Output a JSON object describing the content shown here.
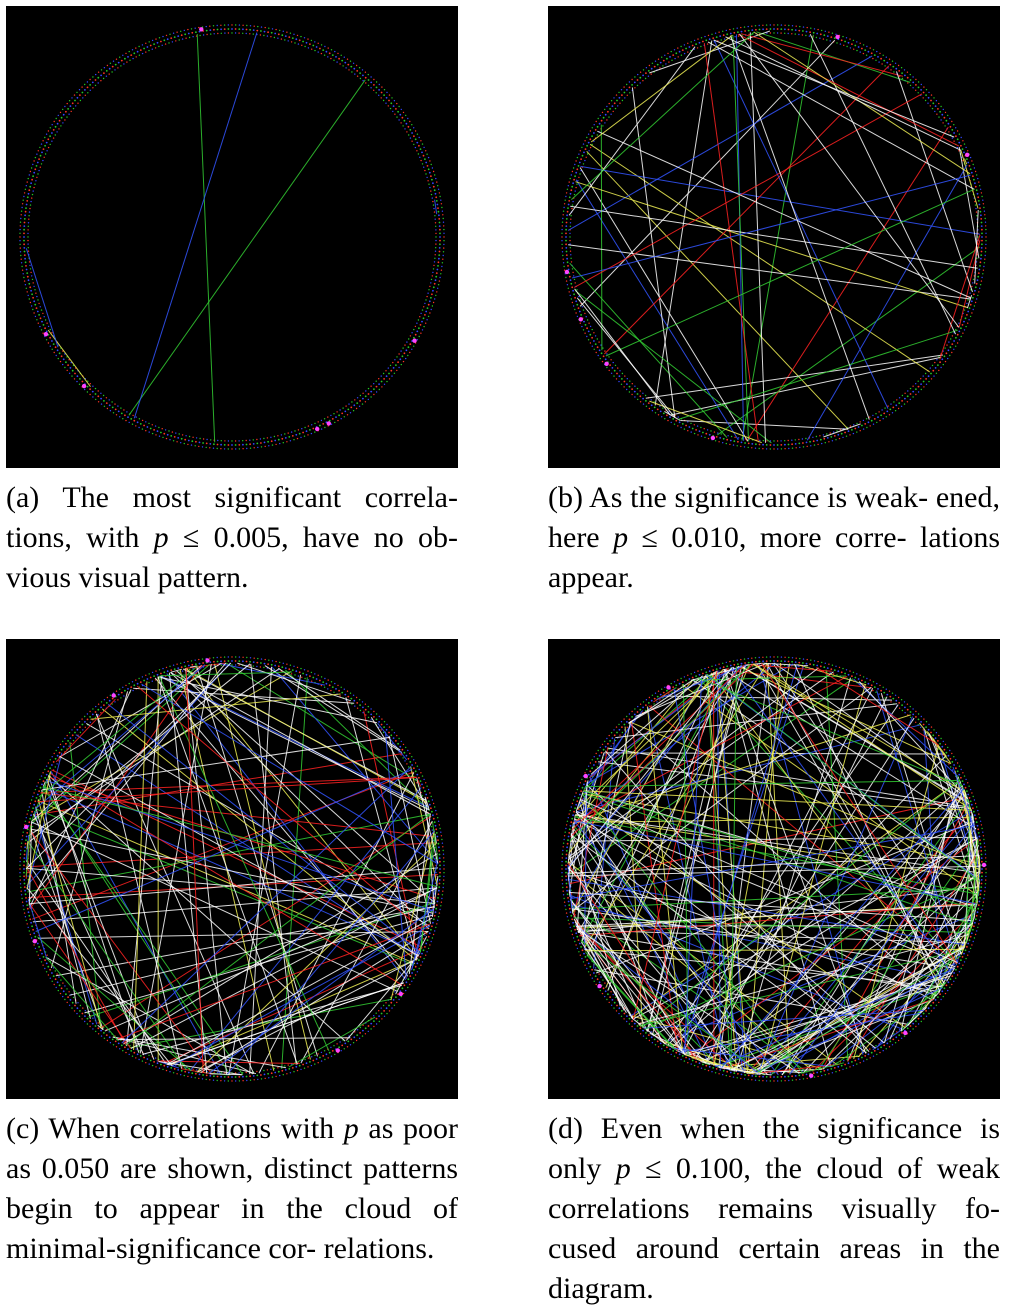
{
  "panels": [
    {
      "id": "a",
      "caption_prefix": "(a)",
      "caption_text": "The most significant correla-tions, with p ≤ 0.005, have no ob-vious visual pattern.",
      "caption_parts": [
        "(a) The most significant correla-",
        "tions, with ",
        "p",
        " ≤ 0.005, have no ob-",
        "vious visual pattern."
      ],
      "p_threshold": 0.005,
      "edge_count": 6
    },
    {
      "id": "b",
      "caption_prefix": "(b)",
      "caption_parts": [
        "(b) As the significance is weak-",
        "ened, here ",
        "p",
        " ≤ 0.010, more corre-",
        "lations appear."
      ],
      "p_threshold": 0.01,
      "edge_count": 60
    },
    {
      "id": "c",
      "caption_prefix": "(c)",
      "caption_parts": [
        "(c) When correlations with ",
        "p",
        " as poor as 0.050 are shown, distinct patterns begin to appear in the cloud of minimal-significance cor-",
        "relations."
      ],
      "p_threshold": 0.05,
      "edge_count": 180
    },
    {
      "id": "d",
      "caption_prefix": "(d)",
      "caption_parts": [
        "(d) Even when the significance is only ",
        "p",
        " ≤ 0.100, the cloud of weak correlations remains visually fo-",
        "cused around certain areas in the diagram."
      ],
      "p_threshold": 0.1,
      "edge_count": 320
    }
  ],
  "colors": {
    "background": "#000000",
    "ring_green": "#22c922",
    "ring_blue": "#3344ff",
    "ring_red": "#ff3322",
    "edge_white": "#ffffff",
    "edge_blue": "#3355ff",
    "edge_green": "#33cc33",
    "edge_yellow": "#eeee55",
    "edge_red": "#ff2222",
    "node_magenta": "#ff44ff"
  }
}
